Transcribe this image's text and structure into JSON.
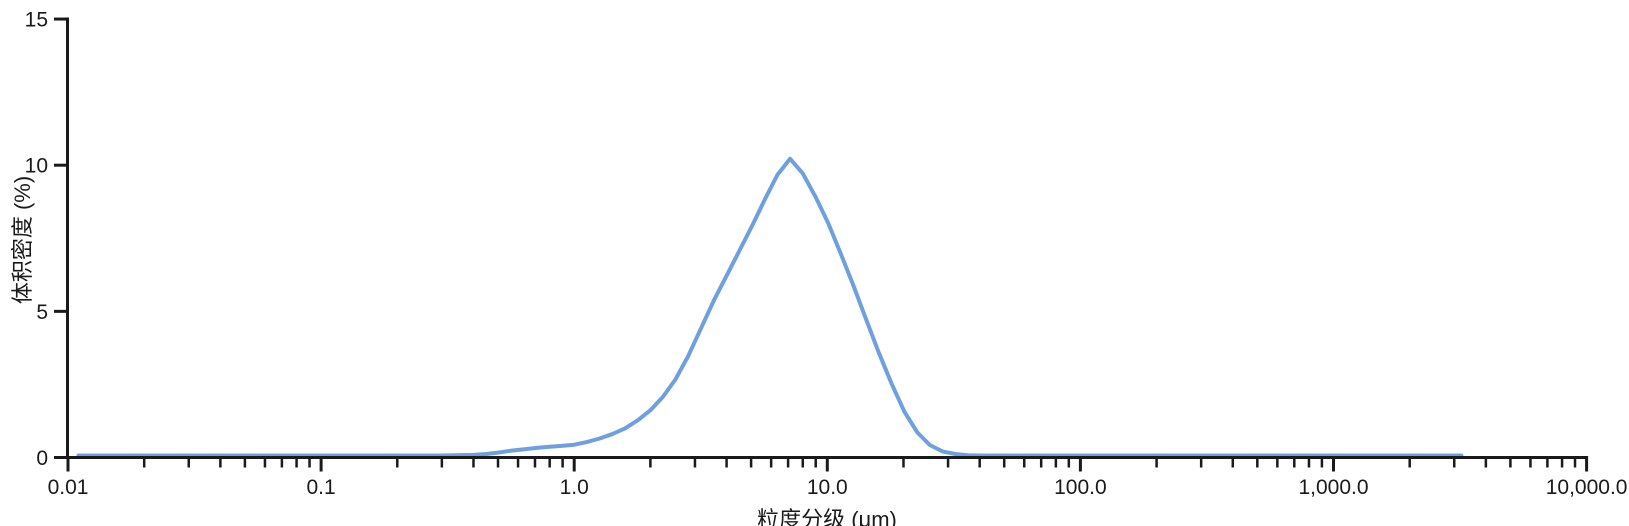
{
  "chart_data": {
    "type": "line",
    "title": "",
    "xlabel": "粒度分级 (μm)",
    "ylabel": "体积密度 (%)",
    "x_scale": "log",
    "xlim": [
      0.01,
      10000
    ],
    "ylim": [
      0,
      15
    ],
    "grid": false,
    "legend": "none",
    "axis_color": "#1a1a1a",
    "x_ticks": [
      {
        "value": 0.01,
        "label": "0.01"
      },
      {
        "value": 0.1,
        "label": "0.1"
      },
      {
        "value": 1,
        "label": "1.0"
      },
      {
        "value": 10,
        "label": "10.0"
      },
      {
        "value": 100,
        "label": "100.0"
      },
      {
        "value": 1000,
        "label": "1,000.0"
      },
      {
        "value": 10000,
        "label": "10,000.0"
      }
    ],
    "y_ticks": [
      {
        "value": 0,
        "label": "0"
      },
      {
        "value": 5,
        "label": "5"
      },
      {
        "value": 10,
        "label": "10"
      },
      {
        "value": 15,
        "label": "15"
      }
    ],
    "series": [
      {
        "color": "#6FA0DD",
        "peak": {
          "size_um": 7.1,
          "volume_density_pct": 10.15
        },
        "points": [
          [
            0.011,
            0
          ],
          [
            0.02,
            0
          ],
          [
            0.05,
            0
          ],
          [
            0.1,
            0
          ],
          [
            0.2,
            0
          ],
          [
            0.3,
            0
          ],
          [
            0.4,
            0.02
          ],
          [
            0.45,
            0.05
          ],
          [
            0.5,
            0.1
          ],
          [
            0.56,
            0.16
          ],
          [
            0.63,
            0.21
          ],
          [
            0.71,
            0.26
          ],
          [
            0.8,
            0.3
          ],
          [
            0.89,
            0.33
          ],
          [
            1.0,
            0.37
          ],
          [
            1.12,
            0.46
          ],
          [
            1.26,
            0.58
          ],
          [
            1.41,
            0.73
          ],
          [
            1.59,
            0.93
          ],
          [
            1.78,
            1.2
          ],
          [
            2.0,
            1.55
          ],
          [
            2.24,
            2.0
          ],
          [
            2.51,
            2.6
          ],
          [
            2.82,
            3.4
          ],
          [
            3.17,
            4.35
          ],
          [
            3.56,
            5.3
          ],
          [
            4.0,
            6.15
          ],
          [
            4.49,
            7.0
          ],
          [
            5.04,
            7.85
          ],
          [
            5.66,
            8.75
          ],
          [
            6.35,
            9.6
          ],
          [
            7.13,
            10.15
          ],
          [
            8.0,
            9.65
          ],
          [
            8.98,
            8.85
          ],
          [
            10.08,
            7.95
          ],
          [
            11.31,
            6.9
          ],
          [
            12.7,
            5.8
          ],
          [
            14.25,
            4.65
          ],
          [
            16.0,
            3.5
          ],
          [
            17.96,
            2.45
          ],
          [
            20.16,
            1.5
          ],
          [
            22.63,
            0.8
          ],
          [
            25.4,
            0.36
          ],
          [
            28.5,
            0.14
          ],
          [
            32.0,
            0.05
          ],
          [
            35.9,
            0.01
          ],
          [
            40.3,
            0
          ],
          [
            56.8,
            0
          ],
          [
            100,
            0
          ],
          [
            200,
            0
          ],
          [
            500,
            0
          ],
          [
            1000,
            0
          ],
          [
            2000,
            0
          ],
          [
            3200,
            0
          ]
        ]
      }
    ]
  }
}
